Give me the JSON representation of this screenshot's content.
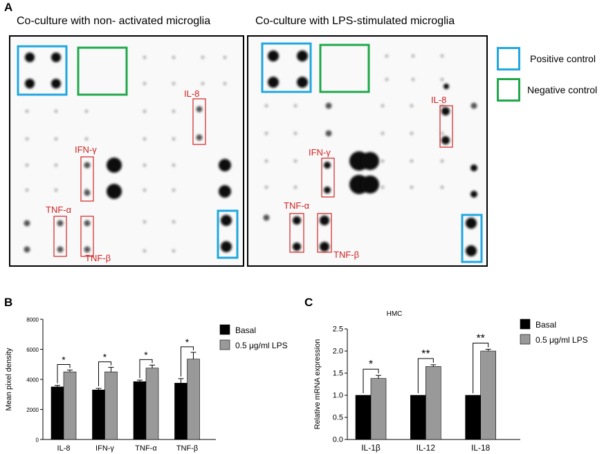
{
  "panel_a": {
    "letter": "A",
    "left_title": "Co-culture with non- activated microglia",
    "right_title": "Co-culture with LPS-stimulated microglia",
    "legend": {
      "positive": "Positive control",
      "negative": "Negative control",
      "positive_color": "#1ea7e1",
      "negative_color": "#1fa84a"
    },
    "labels": {
      "il8": "IL-8",
      "ifng": "IFN-γ",
      "tnfa": "TNF-α",
      "tnfb": "TNF-β"
    },
    "label_color": "#d42020"
  },
  "chart_data": [
    {
      "panel": "B",
      "type": "bar",
      "title": "",
      "ylabel": "Mean pixel density",
      "xlabel": "",
      "categories": [
        "IL-8",
        "IFN-γ",
        "TNF-α",
        "TNF-β"
      ],
      "ylim": [
        0,
        8000
      ],
      "yticks": [
        "0",
        "2000",
        "4000",
        "6000",
        "8000"
      ],
      "series": [
        {
          "name": "Basal",
          "color": "#000000",
          "values": [
            3500,
            3300,
            3850,
            3750
          ],
          "errors": [
            100,
            100,
            100,
            300
          ]
        },
        {
          "name": "0.5 μg/ml LPS",
          "color": "#999999",
          "values": [
            4500,
            4500,
            4750,
            5350
          ],
          "errors": [
            120,
            300,
            200,
            450
          ]
        }
      ],
      "significance": [
        "*",
        "*",
        "*",
        "*"
      ],
      "legend_position": "top-right"
    },
    {
      "panel": "C",
      "type": "bar",
      "title": "HMC",
      "ylabel": "Relative mRNA expression",
      "xlabel": "",
      "categories": [
        "IL-1β",
        "IL-12",
        "IL-18"
      ],
      "ylim": [
        0,
        2.5
      ],
      "yticks": [
        "0.0",
        "0.5",
        "1.0",
        "1.5",
        "2.0",
        "2.5"
      ],
      "series": [
        {
          "name": "Basal",
          "color": "#000000",
          "values": [
            1.0,
            1.0,
            1.0
          ],
          "errors": [
            0,
            0,
            0
          ]
        },
        {
          "name": "0.5 μg/ml LPS",
          "color": "#999999",
          "values": [
            1.38,
            1.65,
            2.0
          ],
          "errors": [
            0.07,
            0.04,
            0.04
          ]
        }
      ],
      "significance": [
        "*",
        "**",
        "**"
      ],
      "legend_position": "top-right"
    }
  ]
}
